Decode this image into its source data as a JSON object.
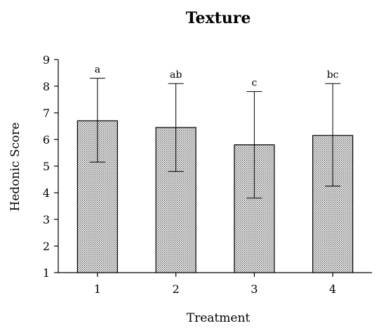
{
  "chart_data": {
    "type": "bar",
    "title": "Texture",
    "xlabel": "Treatment",
    "ylabel": "Hedonic Score",
    "categories": [
      "1",
      "2",
      "3",
      "4"
    ],
    "values": [
      6.7,
      6.45,
      5.8,
      6.15
    ],
    "error_upper": [
      8.3,
      8.1,
      7.8,
      8.1
    ],
    "error_lower": [
      5.15,
      4.8,
      3.8,
      4.25
    ],
    "significance_labels": [
      "a",
      "ab",
      "c",
      "bc"
    ],
    "ylim": [
      1,
      9
    ],
    "yticks": [
      "1",
      "2",
      "3",
      "4",
      "5",
      "6",
      "7",
      "8",
      "9"
    ],
    "grid": false,
    "bar_fill": "dotted-grey"
  }
}
